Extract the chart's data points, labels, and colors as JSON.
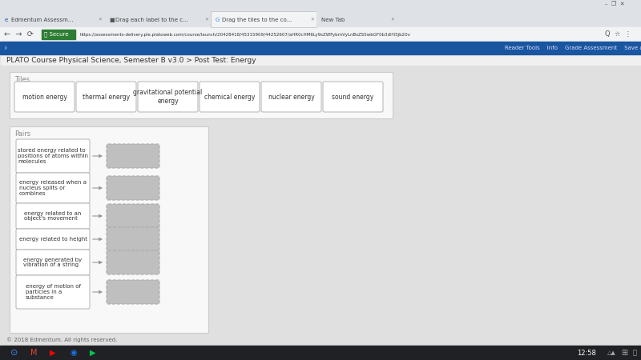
{
  "title": "PLATO Course Physical Science, Semester B v3.0 > Post Test: Energy",
  "tiles_label": "Tiles",
  "pairs_label": "Pairs",
  "tile_items": [
    "motion energy",
    "thermal energy",
    "gravitational potential\nenergy",
    "chemical energy",
    "nuclear energy",
    "sound energy"
  ],
  "pair_descriptions": [
    "stored energy related to\npositions of atoms within\nmolecules",
    "energy released when a\nnucleus splits or\ncombines",
    "energy related to an\nobject's movement",
    "energy related to height",
    "energy generated by\nvibration of a string",
    "energy of motion of\nparticles in a\nsubstance"
  ],
  "footer_text": "© 2018 Edmentum. All rights reserved.",
  "bg_color": "#e8e8e8",
  "page_bg": "#d8d8d8",
  "white": "#ffffff",
  "panel_border": "#cccccc",
  "panel_bg": "#f5f5f5",
  "tile_border": "#bbbbbb",
  "drop_fill": "#c0bfbf",
  "drop_border": "#aaaaaa",
  "text_dark": "#333333",
  "text_gray": "#888888",
  "text_light": "#666666",
  "header_bg": "#005a9c",
  "tab_bar_bg": "#dee1e6",
  "active_tab_bg": "#f1f3f4",
  "url_bar_bg": "#f1f3f4",
  "win_chrome_bg": "#dee1e6",
  "taskbar_bg": "#202124",
  "blue_toolbar_bg": "#1a56a0"
}
